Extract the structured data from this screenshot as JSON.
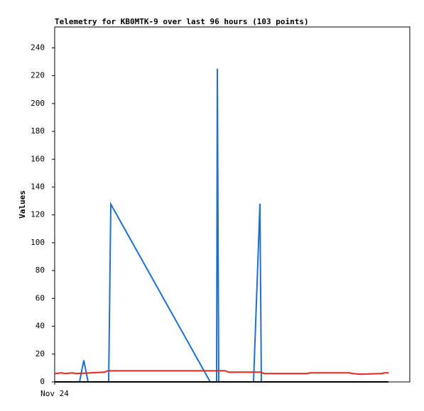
{
  "chart_data": {
    "type": "line",
    "title": "Telemetry for KB0MTK-9 over last 96 hours (103 points)",
    "ylabel": "Values",
    "xlim": [
      0,
      100
    ],
    "xticks": [
      {
        "value": 0,
        "label": "Nov 24"
      }
    ],
    "ylim": [
      0,
      255
    ],
    "yticks": [
      0,
      20,
      40,
      60,
      80,
      100,
      120,
      140,
      160,
      180,
      200,
      220,
      240
    ],
    "series": [
      {
        "color": "#1f6fcf",
        "x": [
          0,
          7,
          8.2,
          9.4,
          15.2,
          15.8,
          43.8,
          45.6,
          45.8,
          46.2,
          46.4,
          56,
          57.8,
          58.2,
          94
        ],
        "values": [
          0,
          0,
          15.5,
          0,
          0,
          127.7,
          0,
          0,
          225,
          0,
          0,
          0,
          128,
          0,
          0
        ]
      },
      {
        "color": "#e8261c",
        "x": [
          0,
          2,
          3,
          5,
          6,
          14,
          15,
          48,
          49,
          58,
          59,
          71,
          72,
          83,
          84,
          86,
          92,
          93,
          94
        ],
        "values": [
          6,
          6.5,
          6,
          6.5,
          6,
          7,
          8,
          8,
          7,
          7,
          6,
          6,
          6.5,
          6.5,
          6,
          5.5,
          6,
          6.5,
          6.5
        ]
      },
      {
        "color": "#000000",
        "x": [
          0,
          94
        ],
        "values": [
          0,
          0
        ]
      }
    ]
  }
}
